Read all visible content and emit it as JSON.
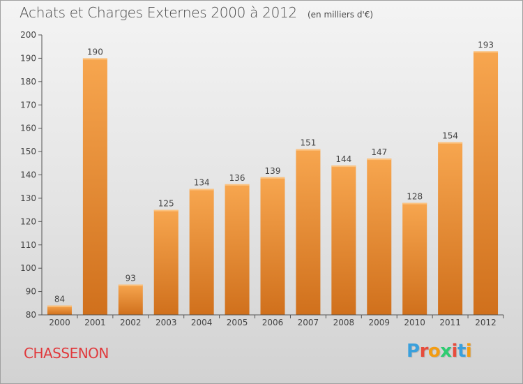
{
  "header": {
    "title": "Achats et Charges Externes 2000 à 2012",
    "unit": "(en milliers d'€)"
  },
  "footer": {
    "city": "CHASSENON",
    "logo": [
      "P",
      "r",
      "o",
      "x",
      "i",
      "t",
      "i"
    ],
    "logo_colors": [
      "#3aa0dc",
      "#e74c3c",
      "#f39c12",
      "#2ecc71",
      "#e74c3c",
      "#3aa0dc",
      "#f39c12"
    ]
  },
  "colors": {
    "bar_light": "#f7a64f",
    "bar_dark": "#d0701c",
    "axis": "#555555",
    "grid": "#ffffff",
    "text": "#444444"
  },
  "chart_data": {
    "type": "bar",
    "title": "Achats et Charges Externes 2000 à 2012",
    "subtitle": "(en milliers d'€)",
    "xlabel": "",
    "ylabel": "",
    "categories": [
      "2000",
      "2001",
      "2002",
      "2003",
      "2004",
      "2005",
      "2006",
      "2007",
      "2008",
      "2009",
      "2010",
      "2011",
      "2012"
    ],
    "values": [
      84,
      190,
      93,
      125,
      134,
      136,
      139,
      151,
      144,
      147,
      128,
      154,
      193
    ],
    "ylim": [
      80,
      200
    ],
    "yticks": [
      80,
      90,
      100,
      110,
      120,
      130,
      140,
      150,
      160,
      170,
      180,
      190,
      200
    ],
    "grid": false,
    "data_labels": true
  }
}
